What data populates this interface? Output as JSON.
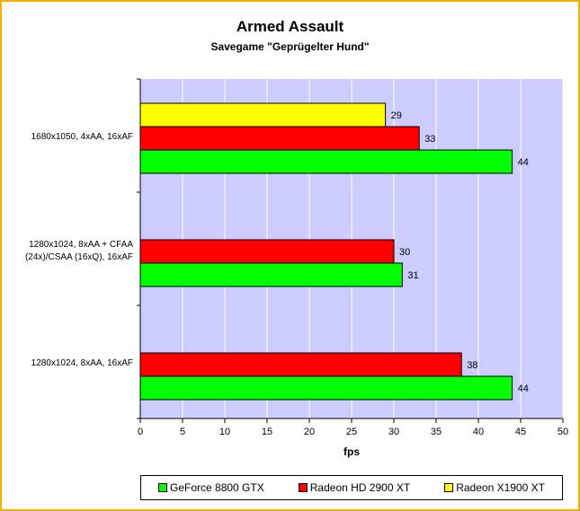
{
  "chart_data": {
    "type": "bar",
    "orientation": "horizontal",
    "title": "Armed Assault",
    "subtitle": "Savegame \"Geprügelter Hund\"",
    "xlabel": "fps",
    "ylabel": "",
    "xlim": [
      0,
      50
    ],
    "xticks": [
      0,
      5,
      10,
      15,
      20,
      25,
      30,
      35,
      40,
      45,
      50
    ],
    "grid": true,
    "legend_position": "bottom",
    "plot_background": "#ccccff",
    "categories": [
      {
        "line1": "1680x1050, 4xAA, 16xAF",
        "line2": ""
      },
      {
        "line1": "1280x1024, 8xAA + CFAA",
        "line2": "(24x)/CSAA (16xQ), 16xAF"
      },
      {
        "line1": "1280x1024, 8xAA, 16xAF",
        "line2": ""
      }
    ],
    "series": [
      {
        "name": "Radeon X1900 XT",
        "color": "#ffff00",
        "values": [
          29,
          null,
          null
        ]
      },
      {
        "name": "Radeon HD 2900 XT",
        "color": "#ff0000",
        "values": [
          33,
          30,
          38
        ]
      },
      {
        "name": "GeForce 8800 GTX",
        "color": "#00ff00",
        "values": [
          44,
          31,
          44
        ]
      }
    ],
    "legend_order": [
      "GeForce 8800 GTX",
      "Radeon HD 2900 XT",
      "Radeon X1900 XT"
    ]
  }
}
